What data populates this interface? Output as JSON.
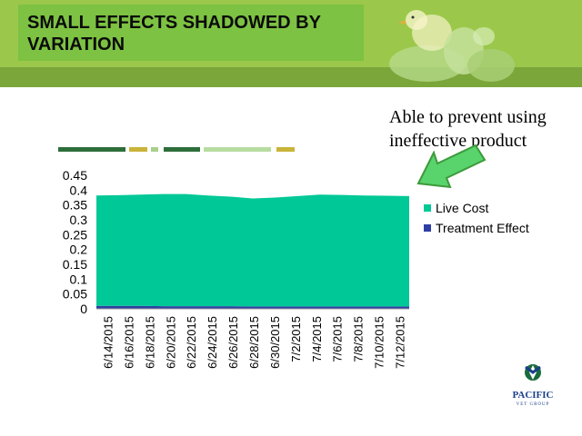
{
  "slide": {
    "title": "SMALL EFFECTS SHADOWED BY VARIATION",
    "callout": "Able to prevent using ineffective product"
  },
  "logo": {
    "name": "PACIFIC",
    "sub": "VET GROUP"
  },
  "colors": {
    "banner": "#9bc84b",
    "title_box": "#7dc242",
    "live_cost": "#00c896",
    "treatment_effect": "#2e3fa3",
    "arrow_fill": "#59d36b",
    "arrow_stroke": "#3c9a3c"
  },
  "legend_bars": [
    {
      "color": "#2d6e3a"
    },
    {
      "color": "#c9b43a"
    },
    {
      "color": "#a8d08d"
    },
    {
      "color": "#2d6e3a"
    },
    {
      "color": "#b7dca0"
    },
    {
      "color": "#c9b43a"
    }
  ],
  "chart_data": {
    "type": "area",
    "stacked": true,
    "categories": [
      "6/14/2015",
      "6/16/2015",
      "6/18/2015",
      "6/20/2015",
      "6/22/2015",
      "6/24/2015",
      "6/26/2015",
      "6/28/2015",
      "6/30/2015",
      "7/2/2015",
      "7/4/2015",
      "7/6/2015",
      "7/8/2015",
      "7/10/2015",
      "7/12/2015"
    ],
    "series": [
      {
        "name": "Treatment Effect",
        "values": [
          0.01,
          0.01,
          0.01,
          0.009,
          0.009,
          0.009,
          0.009,
          0.008,
          0.008,
          0.008,
          0.008,
          0.008,
          0.008,
          0.008,
          0.008
        ]
      },
      {
        "name": "Live Cost",
        "values": [
          0.372,
          0.373,
          0.375,
          0.378,
          0.378,
          0.373,
          0.369,
          0.364,
          0.367,
          0.372,
          0.377,
          0.376,
          0.374,
          0.373,
          0.372
        ]
      }
    ],
    "yticks": [
      "0",
      "0.05",
      "0.1",
      "0.15",
      "0.2",
      "0.25",
      "0.3",
      "0.35",
      "0.4",
      "0.45"
    ],
    "ylim": [
      0,
      0.45
    ],
    "grid": false,
    "legend": "right"
  }
}
